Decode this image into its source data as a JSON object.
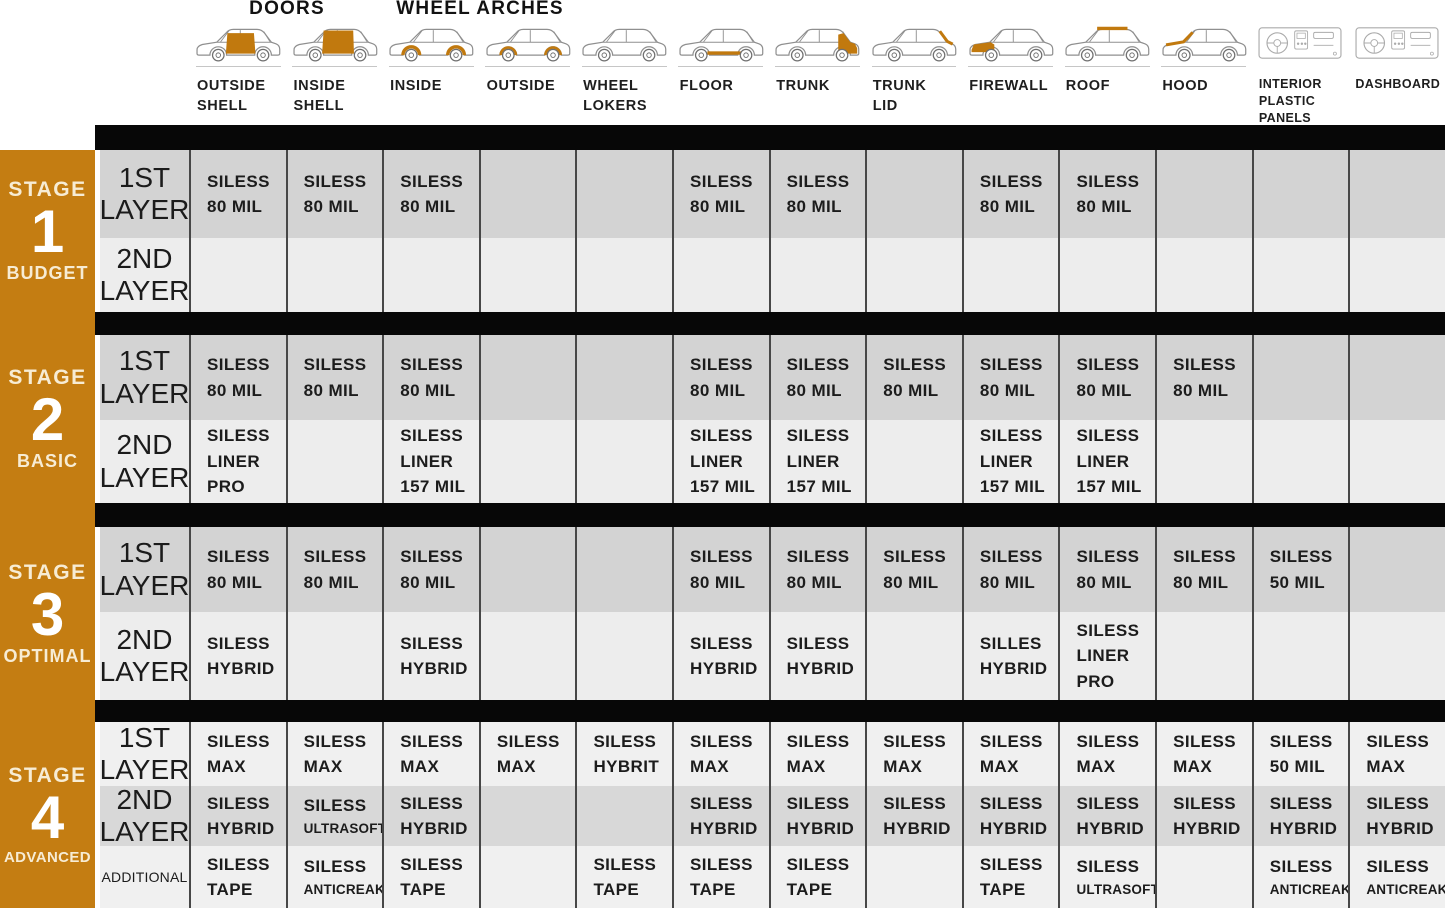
{
  "header": {
    "group_labels": [
      {
        "label": "DOORS"
      },
      {
        "label": "WHEEL ARCHES"
      }
    ],
    "columns": [
      {
        "label": "OUTSIDE\nSHELL",
        "icon": "car-doors-outside-shell-icon",
        "zone": "outside-shell"
      },
      {
        "label": "INSIDE\nSHELL",
        "icon": "car-doors-inside-shell-icon",
        "zone": "inside-shell"
      },
      {
        "label": "INSIDE",
        "icon": "car-wheel-arches-inside-icon",
        "zone": "arches-inside"
      },
      {
        "label": "OUTSIDE",
        "icon": "car-wheel-arches-outside-icon",
        "zone": "arches-outside"
      },
      {
        "label": "WHEEL\nLOKERS",
        "icon": "car-wheel-lokers-icon",
        "zone": "plain"
      },
      {
        "label": "FLOOR",
        "icon": "car-floor-icon",
        "zone": "floor"
      },
      {
        "label": "TRUNK",
        "icon": "car-trunk-icon",
        "zone": "trunk"
      },
      {
        "label": "TRUNK\nLID",
        "icon": "car-trunk-lid-icon",
        "zone": "trunk-lid"
      },
      {
        "label": "FIREWALL",
        "icon": "car-firewall-icon",
        "zone": "firewall"
      },
      {
        "label": "ROOF",
        "icon": "car-roof-icon",
        "zone": "roof"
      },
      {
        "label": "HOOD",
        "icon": "car-hood-icon",
        "zone": "hood"
      },
      {
        "label": "INTERIOR\nPLASTIC\nPANELS",
        "icon": "interior-plastic-panels-icon",
        "zone": "dash",
        "small": true
      },
      {
        "label": "DASHBOARD",
        "icon": "dashboard-icon",
        "zone": "dash",
        "small": true
      }
    ]
  },
  "stages": [
    {
      "word": "STAGE",
      "number": "1",
      "subtitle": "BUDGET",
      "rows": [
        {
          "label": "1ST\nLAYER",
          "cells": [
            "SILESS\n80 MIL",
            "SILESS\n80 MIL",
            "SILESS\n80 MIL",
            "",
            "",
            "SILESS\n80 MIL",
            "SILESS\n80 MIL",
            "",
            "SILESS\n80 MIL",
            "SILESS\n80 MIL",
            "",
            "",
            ""
          ]
        },
        {
          "label": "2ND\nLAYER",
          "cells": [
            "",
            "",
            "",
            "",
            "",
            "",
            "",
            "",
            "",
            "",
            "",
            "",
            ""
          ]
        }
      ]
    },
    {
      "word": "STAGE",
      "number": "2",
      "subtitle": "BASIC",
      "rows": [
        {
          "label": "1ST\nLAYER",
          "cells": [
            "SILESS\n80 MIL",
            "SILESS\n80 MIL",
            "SILESS\n80 MIL",
            "",
            "",
            "SILESS\n80 MIL",
            "SILESS\n80 MIL",
            "SILESS\n80 MIL",
            "SILESS\n80 MIL",
            "SILESS\n80 MIL",
            "SILESS\n80 MIL",
            "",
            ""
          ]
        },
        {
          "label": "2ND\nLAYER",
          "cells": [
            "SILESS\nLINER\nPRO",
            "",
            "SILESS\nLINER\n157 MIL",
            "",
            "",
            "SILESS\nLINER\n157 MIL",
            "SILESS\nLINER\n157 MIL",
            "",
            "SILESS\nLINER\n157 MIL",
            "SILESS\nLINER\n157 MIL",
            "",
            "",
            ""
          ]
        }
      ]
    },
    {
      "word": "STAGE",
      "number": "3",
      "subtitle": "OPTIMAL",
      "rows": [
        {
          "label": "1ST\nLAYER",
          "cells": [
            "SILESS\n80 MIL",
            "SILESS\n80 MIL",
            "SILESS\n80 MIL",
            "",
            "",
            "SILESS\n80 MIL",
            "SILESS\n80 MIL",
            "SILESS\n80 MIL",
            "SILESS\n80 MIL",
            "SILESS\n80 MIL",
            "SILESS\n80 MIL",
            "SILESS\n50 MIL",
            ""
          ]
        },
        {
          "label": "2ND\nLAYER",
          "cells": [
            "SILESS\nHYBRID",
            "",
            "SILESS\nHYBRID",
            "",
            "",
            "SILESS\nHYBRID",
            "SILESS\nHYBRID",
            "",
            "SILLES\nHYBRID",
            "SILESS\nLINER\nPRO",
            "",
            "",
            ""
          ]
        }
      ]
    },
    {
      "word": "STAGE",
      "number": "4",
      "subtitle": "ADVANCED",
      "rows": [
        {
          "label": "1ST\nLAYER",
          "cells": [
            "SILESS\nMAX",
            "SILESS\nMAX",
            "SILESS\nMAX",
            "SILESS\nMAX",
            "SILESS\nHYBRIT",
            "SILESS\nMAX",
            "SILESS\nMAX",
            "SILESS\nMAX",
            "SILESS\nMAX",
            "SILESS\nMAX",
            "SILESS\nMAX",
            "SILESS\n50 MIL",
            "SILESS\nMAX"
          ]
        },
        {
          "label": "2ND\nLAYER",
          "cells": [
            "SILESS\nHYBRID",
            "SILESS\nULTRASOFT",
            "SILESS\nHYBRID",
            "",
            "",
            "SILESS\nHYBRID",
            "SILESS\nHYBRID",
            "SILESS\nHYBRID",
            "SILESS\nHYBRID",
            "SILESS\nHYBRID",
            "SILESS\nHYBRID",
            "SILESS\nHYBRID",
            "SILESS\nHYBRID"
          ]
        },
        {
          "label": "ADDITIONAL",
          "cells": [
            "SILESS\nTAPE",
            "SILESS\nANTICREAK",
            "SILESS\nTAPE",
            "",
            "SILESS\nTAPE",
            "SILESS\nTAPE",
            "SILESS\nTAPE",
            "",
            "SILESS\nTAPE",
            "SILESS\nULTRASOFT",
            "",
            "SILESS\nANTICREAK",
            "SILESS\nANTICREAK"
          ]
        }
      ]
    }
  ],
  "colors": {
    "accent_orange": "#c47d12",
    "bar_black": "#070707",
    "row_dark": "#d3d3d3",
    "row_light": "#ededed",
    "stage4_row_light": "#f0f0f0",
    "stage4_row_dark": "#d8d8d8",
    "stage_text_cream": "#f7ecd4",
    "stage_number_white": "#ffffff"
  }
}
